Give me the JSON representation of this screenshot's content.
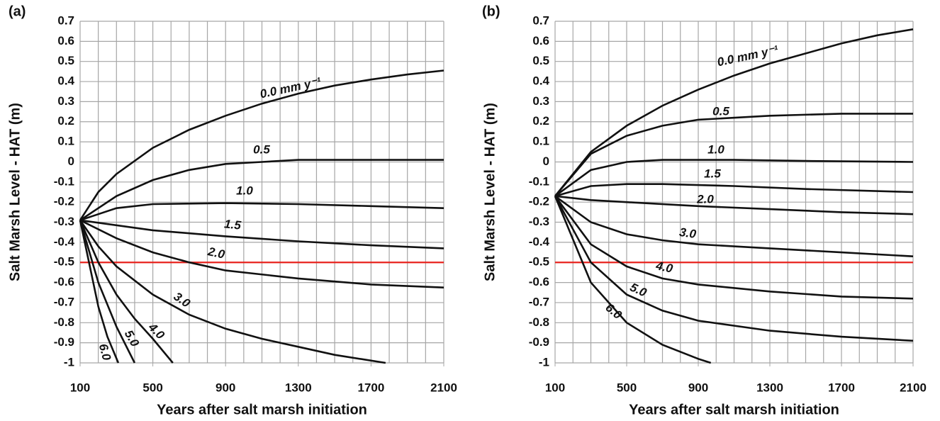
{
  "chart_data": [
    {
      "type": "line",
      "panel_label": "(a)",
      "ylabel": "Salt Marsh Level - HAT (m)",
      "xlabel": "Years after salt marsh initiation",
      "xlim": [
        100,
        2100
      ],
      "ylim": [
        -1,
        0.7
      ],
      "xticks": [
        100,
        500,
        900,
        1300,
        1700,
        2100
      ],
      "xgrid": [
        100,
        200,
        300,
        400,
        500,
        600,
        700,
        800,
        900,
        1000,
        1100,
        1200,
        1300,
        1400,
        1500,
        1600,
        1700,
        1800,
        1900,
        2000,
        2100
      ],
      "yticks": [
        0.7,
        0.6,
        0.5,
        0.4,
        0.3,
        0.2,
        0.1,
        0,
        -0.1,
        -0.2,
        -0.3,
        -0.4,
        -0.5,
        -0.6,
        -0.7,
        -0.8,
        -0.9,
        -1
      ],
      "grid": true,
      "grid_color": "#a6a6a6",
      "hline": {
        "value": -0.5,
        "color": "#e8231e"
      },
      "series": [
        {
          "name": "0.0 mm y⁻¹",
          "color": "#111111",
          "x": [
            100,
            200,
            300,
            500,
            700,
            900,
            1100,
            1300,
            1500,
            1700,
            1900,
            2100
          ],
          "values": [
            -0.29,
            -0.15,
            -0.06,
            0.07,
            0.16,
            0.23,
            0.29,
            0.34,
            0.38,
            0.41,
            0.435,
            0.455
          ]
        },
        {
          "name": "0.5",
          "color": "#111111",
          "x": [
            100,
            300,
            500,
            700,
            900,
            1100,
            1300,
            1700,
            2100
          ],
          "values": [
            -0.29,
            -0.17,
            -0.09,
            -0.04,
            -0.01,
            0.0,
            0.01,
            0.01,
            0.01
          ]
        },
        {
          "name": "1.0",
          "color": "#111111",
          "x": [
            100,
            300,
            500,
            900,
            1300,
            1700,
            2100
          ],
          "values": [
            -0.29,
            -0.23,
            -0.21,
            -0.205,
            -0.21,
            -0.22,
            -0.23
          ]
        },
        {
          "name": "1.5",
          "color": "#111111",
          "x": [
            100,
            500,
            900,
            1300,
            1700,
            2100
          ],
          "values": [
            -0.29,
            -0.34,
            -0.37,
            -0.395,
            -0.415,
            -0.43
          ]
        },
        {
          "name": "2.0",
          "color": "#111111",
          "x": [
            100,
            300,
            500,
            700,
            900,
            1300,
            1700,
            2100
          ],
          "values": [
            -0.29,
            -0.38,
            -0.45,
            -0.5,
            -0.54,
            -0.58,
            -0.61,
            -0.625
          ]
        },
        {
          "name": "3.0",
          "color": "#111111",
          "x": [
            100,
            200,
            300,
            500,
            700,
            900,
            1100,
            1300,
            1500,
            1780
          ],
          "values": [
            -0.29,
            -0.42,
            -0.52,
            -0.66,
            -0.76,
            -0.83,
            -0.88,
            -0.92,
            -0.96,
            -1
          ]
        },
        {
          "name": "4.0",
          "color": "#111111",
          "x": [
            100,
            200,
            300,
            400,
            500,
            610
          ],
          "values": [
            -0.29,
            -0.5,
            -0.66,
            -0.78,
            -0.88,
            -1
          ]
        },
        {
          "name": "5.0",
          "color": "#111111",
          "x": [
            100,
            200,
            300,
            400
          ],
          "values": [
            -0.29,
            -0.6,
            -0.82,
            -1
          ]
        },
        {
          "name": "6.0",
          "color": "#111111",
          "x": [
            100,
            200,
            250,
            310
          ],
          "values": [
            -0.29,
            -0.72,
            -0.87,
            -1
          ]
        }
      ]
    },
    {
      "type": "line",
      "panel_label": "(b)",
      "ylabel": "Salt Marsh Level - HAT (m)",
      "xlabel": "Years after salt marsh initiation",
      "xlim": [
        100,
        2100
      ],
      "ylim": [
        -1,
        0.7
      ],
      "xticks": [
        100,
        500,
        900,
        1300,
        1700,
        2100
      ],
      "xgrid": [
        100,
        200,
        300,
        400,
        500,
        600,
        700,
        800,
        900,
        1000,
        1100,
        1200,
        1300,
        1400,
        1500,
        1600,
        1700,
        1800,
        1900,
        2000,
        2100
      ],
      "yticks": [
        0.7,
        0.6,
        0.5,
        0.4,
        0.3,
        0.2,
        0.1,
        0,
        -0.1,
        -0.2,
        -0.3,
        -0.4,
        -0.5,
        -0.6,
        -0.7,
        -0.8,
        -0.9,
        -1
      ],
      "grid": true,
      "grid_color": "#a6a6a6",
      "hline": {
        "value": -0.5,
        "color": "#e8231e"
      },
      "series": [
        {
          "name": "0.0 mm y⁻¹",
          "color": "#111111",
          "x": [
            100,
            300,
            500,
            700,
            900,
            1100,
            1300,
            1500,
            1700,
            1900,
            2100
          ],
          "values": [
            -0.17,
            0.05,
            0.18,
            0.28,
            0.36,
            0.43,
            0.49,
            0.54,
            0.59,
            0.63,
            0.66
          ]
        },
        {
          "name": "0.5",
          "color": "#111111",
          "x": [
            100,
            300,
            500,
            700,
            900,
            1300,
            1700,
            2100
          ],
          "values": [
            -0.17,
            0.04,
            0.13,
            0.18,
            0.21,
            0.23,
            0.24,
            0.24
          ]
        },
        {
          "name": "1.0",
          "color": "#111111",
          "x": [
            100,
            300,
            500,
            700,
            1100,
            1500,
            2100
          ],
          "values": [
            -0.17,
            -0.04,
            0.0,
            0.01,
            0.01,
            0.005,
            0.0
          ]
        },
        {
          "name": "1.5",
          "color": "#111111",
          "x": [
            100,
            300,
            500,
            700,
            1100,
            1500,
            2100
          ],
          "values": [
            -0.17,
            -0.12,
            -0.11,
            -0.11,
            -0.12,
            -0.135,
            -0.15
          ]
        },
        {
          "name": "2.0",
          "color": "#111111",
          "x": [
            100,
            300,
            500,
            900,
            1300,
            1700,
            2100
          ],
          "values": [
            -0.17,
            -0.19,
            -0.2,
            -0.22,
            -0.235,
            -0.25,
            -0.26
          ]
        },
        {
          "name": "3.0",
          "color": "#111111",
          "x": [
            100,
            300,
            500,
            700,
            900,
            1300,
            1700,
            2100
          ],
          "values": [
            -0.17,
            -0.3,
            -0.36,
            -0.39,
            -0.41,
            -0.43,
            -0.45,
            -0.47
          ]
        },
        {
          "name": "4.0",
          "color": "#111111",
          "x": [
            100,
            300,
            500,
            700,
            900,
            1300,
            1700,
            2100
          ],
          "values": [
            -0.17,
            -0.41,
            -0.52,
            -0.58,
            -0.61,
            -0.645,
            -0.67,
            -0.68
          ]
        },
        {
          "name": "5.0",
          "color": "#111111",
          "x": [
            100,
            300,
            500,
            700,
            900,
            1300,
            1700,
            2100
          ],
          "values": [
            -0.17,
            -0.5,
            -0.66,
            -0.74,
            -0.79,
            -0.84,
            -0.87,
            -0.89
          ]
        },
        {
          "name": "6.0",
          "color": "#111111",
          "x": [
            100,
            300,
            500,
            700,
            900,
            970
          ],
          "values": [
            -0.17,
            -0.6,
            -0.8,
            -0.91,
            -0.98,
            -1
          ]
        }
      ]
    }
  ]
}
